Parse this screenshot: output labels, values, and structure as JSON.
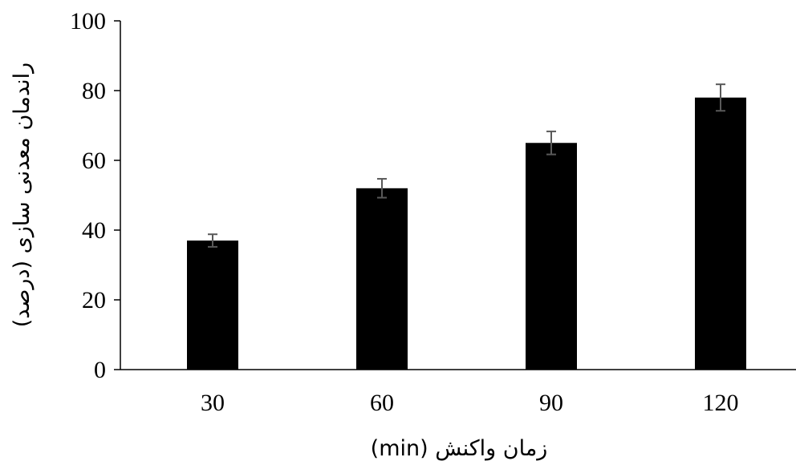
{
  "chart_data": {
    "type": "bar",
    "title": "",
    "xlabel": "زمان واکنش (min)",
    "ylabel": "راندمان معدنی سازی (درصد)",
    "categories": [
      "30",
      "60",
      "90",
      "120"
    ],
    "values": [
      37,
      52,
      65,
      78
    ],
    "error": [
      1.8,
      2.7,
      3.3,
      3.8
    ],
    "ylim": [
      0,
      100
    ],
    "yticks": [
      "0",
      "20",
      "40",
      "60",
      "80",
      "100"
    ],
    "grid": false,
    "legend": "none",
    "bar_color": "#000000",
    "error_bar_color": "#595959"
  }
}
